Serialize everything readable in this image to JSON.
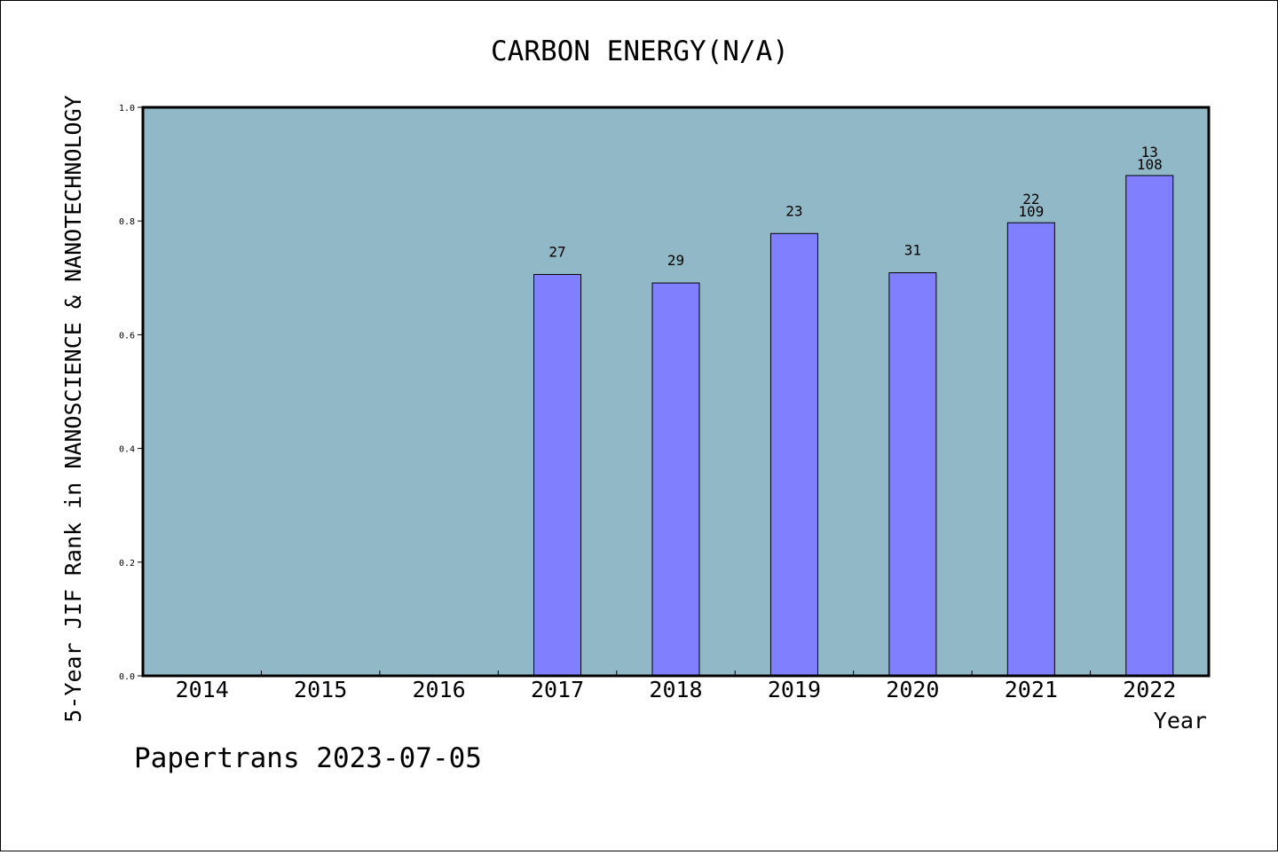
{
  "chart_data": {
    "type": "bar",
    "title": "CARBON ENERGY(N/A)",
    "xlabel": "Year",
    "ylabel": "5-Year JIF Rank in NANOSCIENCE & NANOTECHNOLOGY",
    "categories": [
      "2014",
      "2015",
      "2016",
      "2017",
      "2018",
      "2019",
      "2020",
      "2021",
      "2022"
    ],
    "values": [
      null,
      null,
      null,
      0.706,
      0.691,
      0.778,
      0.709,
      0.797,
      0.88
    ],
    "bar_labels": [
      [],
      [],
      [],
      [
        "27"
      ],
      [
        "29"
      ],
      [
        "23"
      ],
      [
        "31"
      ],
      [
        "22",
        "109"
      ],
      [
        "13",
        "108"
      ]
    ],
    "ylim": [
      0,
      1.0
    ],
    "yticks": [
      "0.0",
      "0.2",
      "0.4",
      "0.6",
      "0.8",
      "1.0"
    ],
    "grid": false,
    "plot_background": "#91b8c6",
    "bar_color": "#8080ff"
  },
  "footer": "Papertrans 2023-07-05"
}
